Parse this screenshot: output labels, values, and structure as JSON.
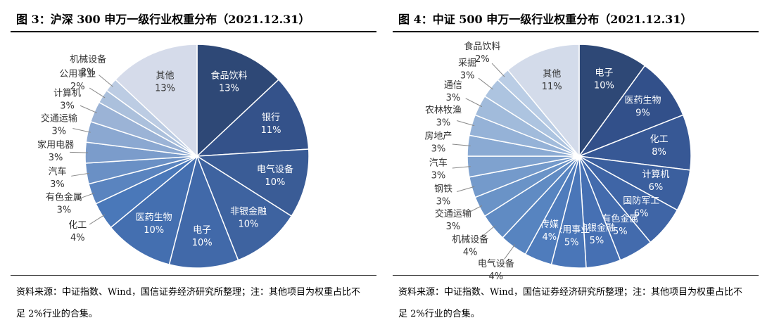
{
  "chart_data": [
    {
      "type": "pie",
      "title": "图 3：沪深 300 申万一级行业权重分布（2021.12.31）",
      "categories": [
        "食品饮料",
        "银行",
        "电气设备",
        "非银金融",
        "电子",
        "医药生物",
        "化工",
        "有色金属",
        "汽车",
        "家用电器",
        "交通运输",
        "计算机",
        "公用事业",
        "机械设备",
        "其他"
      ],
      "values": [
        13,
        11,
        10,
        10,
        10,
        10,
        4,
        3,
        3,
        3,
        3,
        3,
        2,
        2,
        13
      ],
      "value_labels": [
        "13%",
        "11%",
        "10%",
        "10%",
        "10%",
        "10%",
        "4%",
        "3%",
        "3%",
        "3%",
        "3%",
        "3%",
        "2%",
        "2%",
        "13%"
      ],
      "colors": [
        "#2e4876",
        "#34528a",
        "#3a5c96",
        "#3e63a0",
        "#4169a9",
        "#446fb0",
        "#4a78b9",
        "#5a84bf",
        "#6a90c5",
        "#7b9ccb",
        "#8ba8d1",
        "#9bb3d6",
        "#abc0dc",
        "#bccce3",
        "#d5dbea"
      ],
      "source_note": "资料来源：中证指数、Wind，国信证券经济研究所整理；注：其他项目为权重占比不足 2%行业的合集。"
    },
    {
      "type": "pie",
      "title": "图 4：中证 500 申万一级行业权重分布（2021.12.31）",
      "categories": [
        "电子",
        "医药生物",
        "化工",
        "计算机",
        "国防军工",
        "有色金属",
        "非银金融",
        "公用事业",
        "传媒",
        "电气设备",
        "机械设备",
        "交通运输",
        "钢铁",
        "汽车",
        "房地产",
        "农林牧渔",
        "通信",
        "采掘",
        "食品饮料",
        "其他"
      ],
      "values": [
        10,
        9,
        8,
        6,
        6,
        5,
        5,
        5,
        4,
        4,
        4,
        3,
        3,
        3,
        3,
        3,
        3,
        3,
        2,
        11
      ],
      "value_labels": [
        "10%",
        "9%",
        "8%",
        "6%",
        "6%",
        "5%",
        "5%",
        "5%",
        "4%",
        "4%",
        "4%",
        "3%",
        "3%",
        "3%",
        "3%",
        "3%",
        "3%",
        "3%",
        "2%",
        "11%"
      ],
      "colors": [
        "#2e4876",
        "#32508a",
        "#375895",
        "#3b5f9e",
        "#3f65a6",
        "#436bad",
        "#4670b3",
        "#4a76b8",
        "#4f7cbc",
        "#5784c0",
        "#608bc3",
        "#6a93c7",
        "#749acb",
        "#7fa2cf",
        "#8aaad3",
        "#95b2d7",
        "#a1bbdb",
        "#adc4e0",
        "#bacde5",
        "#d3dbea"
      ],
      "source_note": "资料来源：中证指数、Wind，国信证券经济研究所整理；注：其他项目为权重占比不足 2%行业的合集。"
    }
  ]
}
